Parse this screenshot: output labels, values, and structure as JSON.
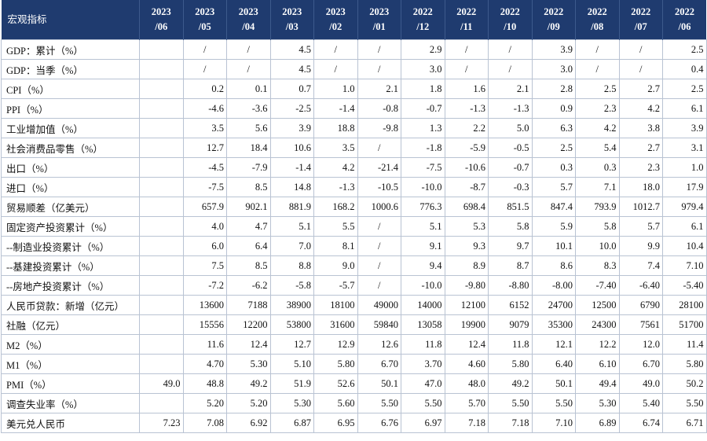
{
  "header": {
    "indicator_label": "宏观指标",
    "periods": [
      {
        "year": "2023",
        "month": "/06"
      },
      {
        "year": "2023",
        "month": "/05"
      },
      {
        "year": "2023",
        "month": "/04"
      },
      {
        "year": "2023",
        "month": "/03"
      },
      {
        "year": "2023",
        "month": "/02"
      },
      {
        "year": "2023",
        "month": "/01"
      },
      {
        "year": "2022",
        "month": "/12"
      },
      {
        "year": "2022",
        "month": "/11"
      },
      {
        "year": "2022",
        "month": "/10"
      },
      {
        "year": "2022",
        "month": "/09"
      },
      {
        "year": "2022",
        "month": "/08"
      },
      {
        "year": "2022",
        "month": "/07"
      },
      {
        "year": "2022",
        "month": "/06"
      }
    ]
  },
  "rows": [
    {
      "label": "GDP：累计（%）",
      "values": [
        "",
        "/",
        "/",
        "4.5",
        "/",
        "/",
        "2.9",
        "/",
        "/",
        "3.9",
        "/",
        "/",
        "2.5"
      ]
    },
    {
      "label": "GDP：当季（%）",
      "values": [
        "",
        "/",
        "/",
        "4.5",
        "/",
        "/",
        "3.0",
        "/",
        "/",
        "3.0",
        "/",
        "/",
        "0.4"
      ]
    },
    {
      "label": "CPI（%）",
      "values": [
        "",
        "0.2",
        "0.1",
        "0.7",
        "1.0",
        "2.1",
        "1.8",
        "1.6",
        "2.1",
        "2.8",
        "2.5",
        "2.7",
        "2.5"
      ]
    },
    {
      "label": "PPI（%）",
      "values": [
        "",
        "-4.6",
        "-3.6",
        "-2.5",
        "-1.4",
        "-0.8",
        "-0.7",
        "-1.3",
        "-1.3",
        "0.9",
        "2.3",
        "4.2",
        "6.1"
      ]
    },
    {
      "label": "工业增加值（%）",
      "values": [
        "",
        "3.5",
        "5.6",
        "3.9",
        "18.8",
        "-9.8",
        "1.3",
        "2.2",
        "5.0",
        "6.3",
        "4.2",
        "3.8",
        "3.9"
      ]
    },
    {
      "label": "社会消费品零售（%）",
      "values": [
        "",
        "12.7",
        "18.4",
        "10.6",
        "3.5",
        "/",
        "-1.8",
        "-5.9",
        "-0.5",
        "2.5",
        "5.4",
        "2.7",
        "3.1"
      ]
    },
    {
      "label": "出口（%）",
      "values": [
        "",
        "-4.5",
        "-7.9",
        "-1.4",
        "4.2",
        "-21.4",
        "-7.5",
        "-10.6",
        "-0.7",
        "0.3",
        "0.3",
        "2.3",
        "1.0"
      ]
    },
    {
      "label": "进口（%）",
      "values": [
        "",
        "-7.5",
        "8.5",
        "14.8",
        "-1.3",
        "-10.5",
        "-10.0",
        "-8.7",
        "-0.3",
        "5.7",
        "7.1",
        "18.0",
        "17.9"
      ]
    },
    {
      "label": "贸易顺差（亿美元）",
      "values": [
        "",
        "657.9",
        "902.1",
        "881.9",
        "168.2",
        "1000.6",
        "776.3",
        "698.4",
        "851.5",
        "847.4",
        "793.9",
        "1012.7",
        "979.4"
      ]
    },
    {
      "label": "固定资产投资累计（%）",
      "values": [
        "",
        "4.0",
        "4.7",
        "5.1",
        "5.5",
        "/",
        "5.1",
        "5.3",
        "5.8",
        "5.9",
        "5.8",
        "5.7",
        "6.1"
      ]
    },
    {
      "label": "--制造业投资累计（%）",
      "values": [
        "",
        "6.0",
        "6.4",
        "7.0",
        "8.1",
        "/",
        "9.1",
        "9.3",
        "9.7",
        "10.1",
        "10.0",
        "9.9",
        "10.4"
      ]
    },
    {
      "label": "--基建投资累计（%）",
      "values": [
        "",
        "7.5",
        "8.5",
        "8.8",
        "9.0",
        "/",
        "9.4",
        "8.9",
        "8.7",
        "8.6",
        "8.3",
        "7.4",
        "7.10"
      ]
    },
    {
      "label": "--房地产投资累计（%）",
      "values": [
        "",
        "-7.2",
        "-6.2",
        "-5.8",
        "-5.7",
        "/",
        "-10.0",
        "-9.80",
        "-8.80",
        "-8.00",
        "-7.40",
        "-6.40",
        "-5.40"
      ]
    },
    {
      "label": "人民币贷款：新增（亿元）",
      "values": [
        "",
        "13600",
        "7188",
        "38900",
        "18100",
        "49000",
        "14000",
        "12100",
        "6152",
        "24700",
        "12500",
        "6790",
        "28100"
      ]
    },
    {
      "label": "社融（亿元）",
      "values": [
        "",
        "15556",
        "12200",
        "53800",
        "31600",
        "59840",
        "13058",
        "19900",
        "9079",
        "35300",
        "24300",
        "7561",
        "51700"
      ]
    },
    {
      "label": "M2（%）",
      "values": [
        "",
        "11.6",
        "12.4",
        "12.7",
        "12.9",
        "12.6",
        "11.8",
        "12.4",
        "11.8",
        "12.1",
        "12.2",
        "12.0",
        "11.4"
      ]
    },
    {
      "label": "M1（%）",
      "values": [
        "",
        "4.70",
        "5.30",
        "5.10",
        "5.80",
        "6.70",
        "3.70",
        "4.60",
        "5.80",
        "6.40",
        "6.10",
        "6.70",
        "5.80"
      ]
    },
    {
      "label": "PMI（%）",
      "values": [
        "49.0",
        "48.8",
        "49.2",
        "51.9",
        "52.6",
        "50.1",
        "47.0",
        "48.0",
        "49.2",
        "50.1",
        "49.4",
        "49.0",
        "50.2"
      ]
    },
    {
      "label": "调查失业率（%）",
      "values": [
        "",
        "5.20",
        "5.20",
        "5.30",
        "5.60",
        "5.50",
        "5.50",
        "5.70",
        "5.50",
        "5.50",
        "5.30",
        "5.40",
        "5.50"
      ]
    },
    {
      "label": "美元兑人民币",
      "values": [
        "7.23",
        "7.08",
        "6.92",
        "6.87",
        "6.95",
        "6.76",
        "6.97",
        "7.18",
        "7.18",
        "7.10",
        "6.89",
        "6.74",
        "6.71"
      ]
    }
  ]
}
